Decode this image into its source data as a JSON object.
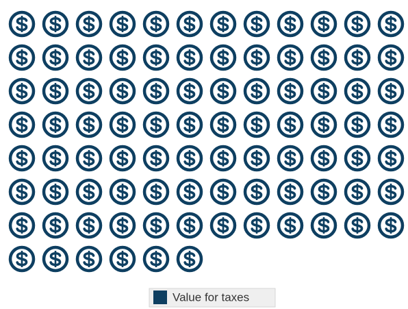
{
  "chart_data": {
    "type": "pictograph",
    "series": [
      {
        "name": "Value for taxes",
        "color": "#0e3f61",
        "values": [
          90
        ]
      }
    ],
    "legend": "bottom"
  }
}
